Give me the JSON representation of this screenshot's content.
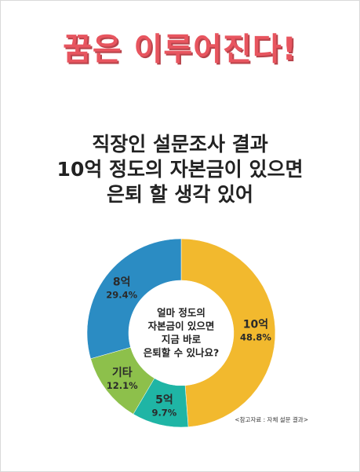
{
  "headline": "꿈은 이루어진다!",
  "subtitle": {
    "lines": [
      "직장인 설문조사 결과",
      "10억 정도의 자본금이 있으면",
      "은퇴 할 생각 있어"
    ]
  },
  "chart_data": {
    "type": "pie",
    "style": "donut",
    "categories": [
      "10억",
      "5억",
      "기타",
      "8억"
    ],
    "values": [
      48.8,
      9.7,
      12.1,
      29.4
    ],
    "value_labels": [
      "48.8%",
      "9.7%",
      "12.1%",
      "29.4%"
    ],
    "colors": [
      "#f2b92e",
      "#1fb5a5",
      "#8dc04b",
      "#2b8cc3"
    ],
    "start_angle": "top, clockwise",
    "center_text": [
      "얼마 정도의",
      "자본금이 있으면",
      "지금 바로",
      "은퇴할 수 있나요?"
    ]
  },
  "source": "<참고자료 : 자체 설문 결과>"
}
